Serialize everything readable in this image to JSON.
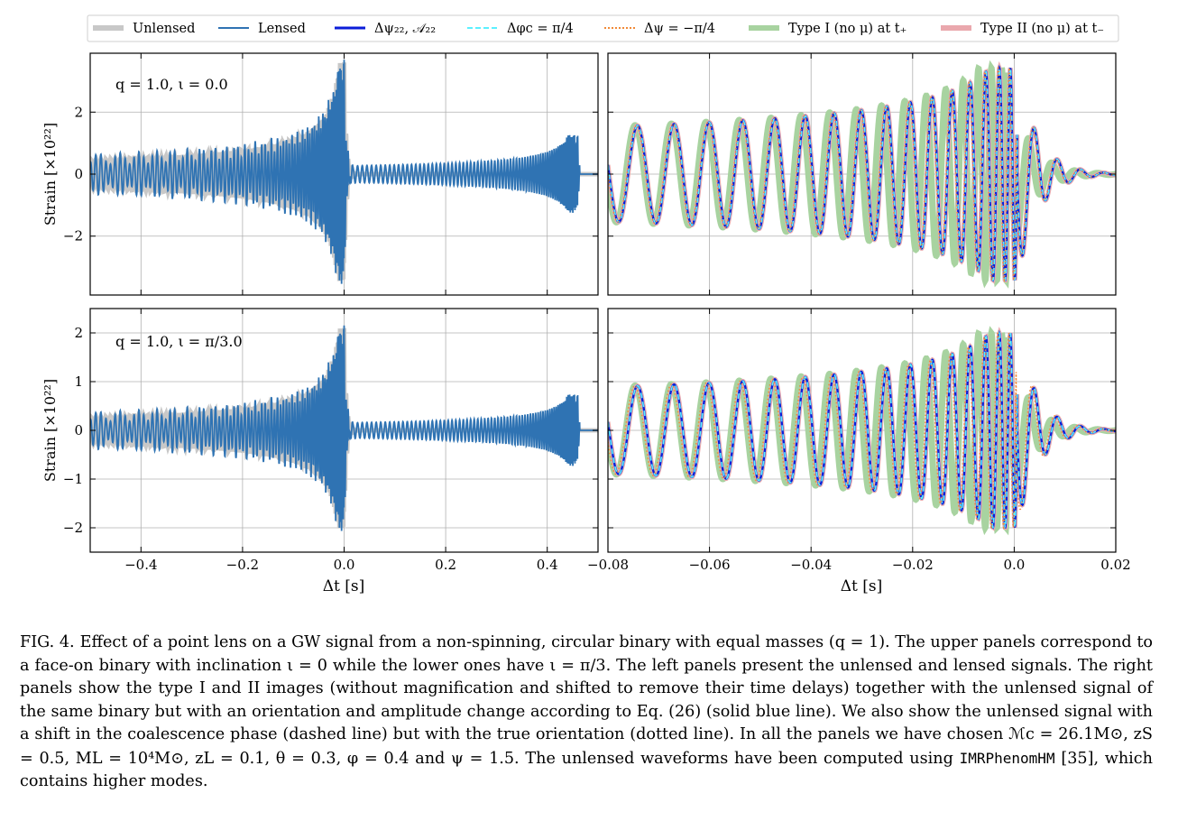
{
  "legend": {
    "entries": [
      {
        "label": "Unlensed",
        "color": "#c8c8c8",
        "style": "thick-solid"
      },
      {
        "label": "Lensed",
        "color": "#2f73b3",
        "style": "solid"
      },
      {
        "label": "Δψ₂₂, 𝒜₂₂",
        "color": "#0b1ed8",
        "style": "solid"
      },
      {
        "label": "Δφc = π/4",
        "color": "#5cf0ff",
        "style": "dashed"
      },
      {
        "label": "Δψ = −π/4",
        "color": "#f08a38",
        "style": "dotted"
      },
      {
        "label": "Type I (no μ) at t₊",
        "color": "#a8d3a0",
        "style": "thick-solid"
      },
      {
        "label": "Type II (no μ) at t₋",
        "color": "#eaa8ad",
        "style": "thick-solid"
      }
    ]
  },
  "panels": {
    "top_left_annotation": "q = 1.0, ι = 0.0",
    "bottom_left_annotation": "q = 1.0, ι = π/3.0",
    "ylabel": "Strain [×10²²]",
    "xlabel": "Δt [s]"
  },
  "chart_data": [
    {
      "type": "line",
      "panel": "top-left",
      "xlim": [
        -0.5,
        0.5
      ],
      "ylim": [
        -3.9,
        3.9
      ],
      "xticks": [
        -0.4,
        -0.2,
        0.0,
        0.2,
        0.4
      ],
      "yticks": [
        -2,
        0,
        2
      ],
      "series": [
        {
          "name": "Unlensed"
        },
        {
          "name": "Lensed"
        }
      ],
      "grid": true
    },
    {
      "type": "line",
      "panel": "top-right",
      "xlim": [
        -0.08,
        0.02
      ],
      "ylim": [
        -3.9,
        3.9
      ],
      "xticks": [
        -0.08,
        -0.06,
        -0.04,
        -0.02,
        0.0,
        0.02
      ],
      "yticks": [
        -2,
        0,
        2
      ],
      "series": [
        {
          "name": "Unlensed"
        },
        {
          "name": "Δψ₂₂, 𝒜₂₂"
        },
        {
          "name": "Δφc = π/4"
        },
        {
          "name": "Δψ = −π/4"
        },
        {
          "name": "Type I (no μ) at t₊"
        },
        {
          "name": "Type II (no μ) at t₋"
        }
      ],
      "grid": true
    },
    {
      "type": "line",
      "panel": "bottom-left",
      "xlim": [
        -0.5,
        0.5
      ],
      "ylim": [
        -2.5,
        2.5
      ],
      "xticks": [
        -0.4,
        -0.2,
        0.0,
        0.2,
        0.4
      ],
      "yticks": [
        -2,
        -1,
        0,
        1,
        2
      ],
      "series": [
        {
          "name": "Unlensed"
        },
        {
          "name": "Lensed"
        }
      ],
      "grid": true
    },
    {
      "type": "line",
      "panel": "bottom-right",
      "xlim": [
        -0.08,
        0.02
      ],
      "ylim": [
        -2.5,
        2.5
      ],
      "xticks": [
        -0.08,
        -0.06,
        -0.04,
        -0.02,
        0.0,
        0.02
      ],
      "yticks": [
        -2,
        -1,
        0,
        1,
        2
      ],
      "series": [
        {
          "name": "Unlensed"
        },
        {
          "name": "Δψ₂₂, 𝒜₂₂"
        },
        {
          "name": "Δφc = π/4"
        },
        {
          "name": "Δψ = −π/4"
        },
        {
          "name": "Type I (no μ) at t₊"
        },
        {
          "name": "Type II (no μ) at t₋"
        }
      ],
      "grid": true
    }
  ],
  "caption": {
    "label": "FIG. 4.",
    "text_1": "Effect of a point lens on a GW signal from a non-spinning, circular binary with equal masses (q = 1). The upper panels correspond to a face-on binary with inclination ι = 0 while the lower ones have ι = π/3. The left panels present the unlensed and lensed signals. The right panels show the type I and II images (without magnification and shifted to remove their time delays) together with the unlensed signal of the same binary but with an orientation and amplitude change according to Eq. (26) (solid blue line). We also show the unlensed signal with a shift in the coalescence phase (dashed line) but with the true orientation (dotted line). In all the panels we have chosen ℳc = 26.1M⊙, zS = 0.5, ML = 10⁴M⊙, zL = 0.1, θ = 0.3, φ = 0.4 and ψ = 1.5. The unlensed waveforms have been computed using",
    "code": "IMRPhenomHM",
    "text_2": "[35], which contains higher modes."
  }
}
